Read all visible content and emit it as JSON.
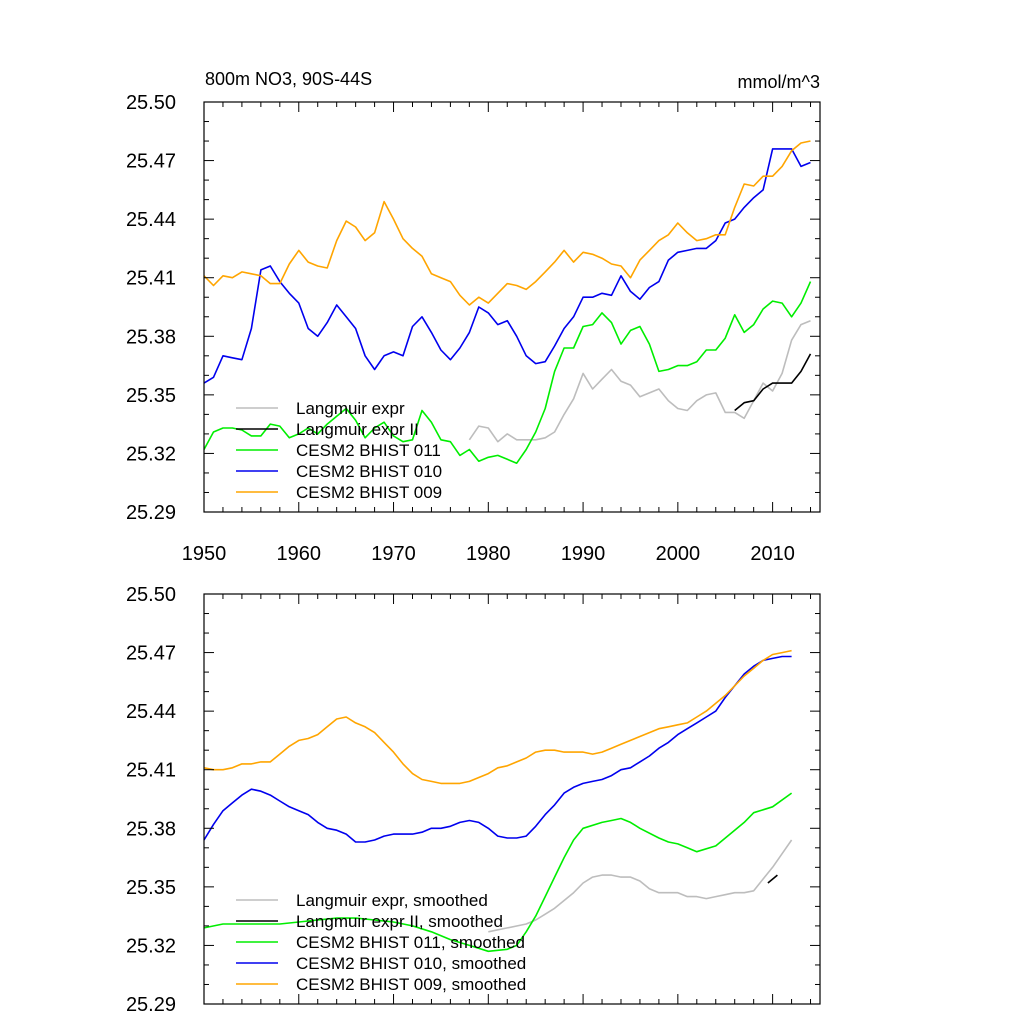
{
  "chart_data": [
    {
      "type": "line",
      "title": "800m NO3, 90S-44S",
      "subtitle_right": "mmol/m^3",
      "xlabel": "",
      "ylabel": "",
      "xlim": [
        1950,
        2015
      ],
      "ylim": [
        25.29,
        25.5
      ],
      "x_ticks": [
        1950,
        1960,
        1970,
        1980,
        1990,
        2000,
        2010
      ],
      "x_tick_labels": [
        "1950",
        "1960",
        "1970",
        "1980",
        "1990",
        "2000",
        "2010"
      ],
      "y_ticks": [
        25.29,
        25.32,
        25.35,
        25.38,
        25.41,
        25.44,
        25.47,
        25.5
      ],
      "y_tick_labels": [
        "25.29",
        "25.32",
        "25.35",
        "25.38",
        "25.41",
        "25.44",
        "25.47",
        "25.50"
      ],
      "legend_position": "bottom-left",
      "series": [
        {
          "name": "Langmuir expr",
          "color": "#bdbdbd",
          "x": [
            1978,
            1979,
            1980,
            1981,
            1982,
            1983,
            1984,
            1985,
            1986,
            1987,
            1988,
            1989,
            1990,
            1991,
            1992,
            1993,
            1994,
            1995,
            1996,
            1997,
            1998,
            1999,
            2000,
            2001,
            2002,
            2003,
            2004,
            2005,
            2006,
            2007,
            2008,
            2009,
            2010,
            2011,
            2012,
            2013,
            2014
          ],
          "y": [
            25.327,
            25.334,
            25.333,
            25.326,
            25.33,
            25.327,
            25.327,
            25.327,
            25.328,
            25.331,
            25.34,
            25.348,
            25.361,
            25.353,
            25.358,
            25.363,
            25.357,
            25.355,
            25.349,
            25.351,
            25.353,
            25.347,
            25.343,
            25.342,
            25.347,
            25.35,
            25.351,
            25.341,
            25.341,
            25.338,
            25.347,
            25.356,
            25.352,
            25.361,
            25.378,
            25.386,
            25.388
          ]
        },
        {
          "name": "Langmuir expr II",
          "color": "#000000",
          "x": [
            2006,
            2007,
            2008,
            2009,
            2010,
            2011,
            2012,
            2013,
            2014
          ],
          "y": [
            25.342,
            25.346,
            25.347,
            25.353,
            25.356,
            25.356,
            25.356,
            25.362,
            25.371
          ]
        },
        {
          "name": "CESM2 BHIST 011",
          "color": "#00ee00",
          "x": [
            1950,
            1951,
            1952,
            1953,
            1954,
            1955,
            1956,
            1957,
            1958,
            1959,
            1960,
            1961,
            1962,
            1963,
            1964,
            1965,
            1966,
            1967,
            1968,
            1969,
            1970,
            1971,
            1972,
            1973,
            1974,
            1975,
            1976,
            1977,
            1978,
            1979,
            1980,
            1981,
            1982,
            1983,
            1984,
            1985,
            1986,
            1987,
            1988,
            1989,
            1990,
            1991,
            1992,
            1993,
            1994,
            1995,
            1996,
            1997,
            1998,
            1999,
            2000,
            2001,
            2002,
            2003,
            2004,
            2005,
            2006,
            2007,
            2008,
            2009,
            2010,
            2011,
            2012,
            2013,
            2014
          ],
          "y": [
            25.322,
            25.331,
            25.333,
            25.333,
            25.332,
            25.329,
            25.329,
            25.335,
            25.334,
            25.328,
            25.33,
            25.333,
            25.33,
            25.335,
            25.339,
            25.343,
            25.337,
            25.328,
            25.333,
            25.336,
            25.329,
            25.326,
            25.327,
            25.342,
            25.336,
            25.327,
            25.326,
            25.319,
            25.322,
            25.316,
            25.318,
            25.319,
            25.317,
            25.315,
            25.322,
            25.331,
            25.343,
            25.362,
            25.374,
            25.374,
            25.385,
            25.386,
            25.392,
            25.387,
            25.376,
            25.383,
            25.385,
            25.376,
            25.362,
            25.363,
            25.365,
            25.365,
            25.367,
            25.373,
            25.373,
            25.379,
            25.391,
            25.382,
            25.386,
            25.394,
            25.398,
            25.397,
            25.39,
            25.397,
            25.408
          ]
        },
        {
          "name": "CESM2 BHIST 010",
          "color": "#0000ee",
          "x": [
            1950,
            1951,
            1952,
            1953,
            1954,
            1955,
            1956,
            1957,
            1958,
            1959,
            1960,
            1961,
            1962,
            1963,
            1964,
            1965,
            1966,
            1967,
            1968,
            1969,
            1970,
            1971,
            1972,
            1973,
            1974,
            1975,
            1976,
            1977,
            1978,
            1979,
            1980,
            1981,
            1982,
            1983,
            1984,
            1985,
            1986,
            1987,
            1988,
            1989,
            1990,
            1991,
            1992,
            1993,
            1994,
            1995,
            1996,
            1997,
            1998,
            1999,
            2000,
            2001,
            2002,
            2003,
            2004,
            2005,
            2006,
            2007,
            2008,
            2009,
            2010,
            2011,
            2012,
            2013,
            2014
          ],
          "y": [
            25.356,
            25.359,
            25.37,
            25.369,
            25.368,
            25.384,
            25.414,
            25.416,
            25.408,
            25.402,
            25.397,
            25.384,
            25.38,
            25.387,
            25.396,
            25.39,
            25.384,
            25.37,
            25.363,
            25.37,
            25.372,
            25.37,
            25.385,
            25.39,
            25.382,
            25.373,
            25.368,
            25.374,
            25.382,
            25.395,
            25.392,
            25.386,
            25.388,
            25.38,
            25.37,
            25.366,
            25.367,
            25.375,
            25.384,
            25.39,
            25.4,
            25.4,
            25.402,
            25.401,
            25.411,
            25.403,
            25.399,
            25.405,
            25.408,
            25.419,
            25.423,
            25.424,
            25.425,
            25.425,
            25.429,
            25.438,
            25.44,
            25.446,
            25.451,
            25.455,
            25.476,
            25.476,
            25.476,
            25.467,
            25.469
          ]
        },
        {
          "name": "CESM2 BHIST 009",
          "color": "#ffa500",
          "x": [
            1950,
            1951,
            1952,
            1953,
            1954,
            1955,
            1956,
            1957,
            1958,
            1959,
            1960,
            1961,
            1962,
            1963,
            1964,
            1965,
            1966,
            1967,
            1968,
            1969,
            1970,
            1971,
            1972,
            1973,
            1974,
            1975,
            1976,
            1977,
            1978,
            1979,
            1980,
            1981,
            1982,
            1983,
            1984,
            1985,
            1986,
            1987,
            1988,
            1989,
            1990,
            1991,
            1992,
            1993,
            1994,
            1995,
            1996,
            1997,
            1998,
            1999,
            2000,
            2001,
            2002,
            2003,
            2004,
            2005,
            2006,
            2007,
            2008,
            2009,
            2010,
            2011,
            2012,
            2013,
            2014
          ],
          "y": [
            25.411,
            25.406,
            25.411,
            25.41,
            25.413,
            25.412,
            25.411,
            25.407,
            25.407,
            25.417,
            25.424,
            25.418,
            25.416,
            25.415,
            25.429,
            25.439,
            25.436,
            25.429,
            25.433,
            25.449,
            25.44,
            25.43,
            25.425,
            25.421,
            25.412,
            25.41,
            25.408,
            25.401,
            25.396,
            25.4,
            25.397,
            25.402,
            25.407,
            25.406,
            25.404,
            25.408,
            25.413,
            25.418,
            25.424,
            25.418,
            25.423,
            25.422,
            25.42,
            25.417,
            25.416,
            25.41,
            25.419,
            25.424,
            25.429,
            25.432,
            25.438,
            25.433,
            25.429,
            25.43,
            25.432,
            25.432,
            25.446,
            25.458,
            25.457,
            25.462,
            25.462,
            25.467,
            25.475,
            25.479,
            25.48
          ]
        }
      ]
    },
    {
      "type": "line",
      "title": "",
      "xlabel": "",
      "ylabel": "",
      "xlim": [
        1950,
        2015
      ],
      "ylim": [
        25.29,
        25.5
      ],
      "x_ticks": [
        1950,
        1960,
        1970,
        1980,
        1990,
        2000,
        2010
      ],
      "y_ticks": [
        25.29,
        25.32,
        25.35,
        25.38,
        25.41,
        25.44,
        25.47,
        25.5
      ],
      "y_tick_labels": [
        "25.29",
        "25.32",
        "25.35",
        "25.38",
        "25.41",
        "25.44",
        "25.47",
        "25.50"
      ],
      "legend_position": "bottom-left",
      "series": [
        {
          "name": "Langmuir expr, smoothed",
          "color": "#bdbdbd",
          "x": [
            1980,
            1982,
            1984,
            1985,
            1986,
            1987,
            1988,
            1989,
            1990,
            1991,
            1992,
            1993,
            1994,
            1995,
            1996,
            1997,
            1998,
            1999,
            2000,
            2001,
            2002,
            2003,
            2004,
            2005,
            2006,
            2007,
            2008,
            2009,
            2010,
            2011,
            2012
          ],
          "y": [
            25.327,
            25.329,
            25.331,
            25.333,
            25.336,
            25.339,
            25.343,
            25.347,
            25.352,
            25.355,
            25.356,
            25.356,
            25.355,
            25.355,
            25.353,
            25.349,
            25.347,
            25.347,
            25.347,
            25.345,
            25.345,
            25.344,
            25.345,
            25.346,
            25.347,
            25.347,
            25.348,
            25.354,
            25.36,
            25.367,
            25.374
          ]
        },
        {
          "name": "Langmuir expr II, smoothed",
          "color": "#000000",
          "x": [
            2009.5,
            2010.5
          ],
          "y": [
            25.352,
            25.356
          ]
        },
        {
          "name": "CESM2 BHIST 011, smoothed",
          "color": "#00ee00",
          "x": [
            1950,
            1952,
            1954,
            1956,
            1958,
            1960,
            1962,
            1964,
            1966,
            1968,
            1970,
            1972,
            1974,
            1976,
            1978,
            1980,
            1982,
            1983,
            1984,
            1985,
            1986,
            1987,
            1988,
            1989,
            1990,
            1992,
            1993,
            1994,
            1995,
            1996,
            1998,
            1999,
            2000,
            2001,
            2002,
            2004,
            2006,
            2007,
            2008,
            2010,
            2012
          ],
          "y": [
            25.329,
            25.331,
            25.331,
            25.331,
            25.331,
            25.332,
            25.333,
            25.334,
            25.334,
            25.333,
            25.332,
            25.33,
            25.327,
            25.323,
            25.32,
            25.317,
            25.318,
            25.32,
            25.327,
            25.335,
            25.345,
            25.355,
            25.365,
            25.374,
            25.38,
            25.383,
            25.384,
            25.385,
            25.383,
            25.38,
            25.375,
            25.373,
            25.372,
            25.37,
            25.368,
            25.371,
            25.379,
            25.383,
            25.388,
            25.391,
            25.398
          ]
        },
        {
          "name": "CESM2 BHIST 010, smoothed",
          "color": "#0000ee",
          "x": [
            1950,
            1951,
            1952,
            1953,
            1954,
            1955,
            1956,
            1957,
            1958,
            1959,
            1960,
            1961,
            1962,
            1963,
            1964,
            1965,
            1966,
            1967,
            1968,
            1969,
            1970,
            1971,
            1972,
            1973,
            1974,
            1975,
            1976,
            1977,
            1978,
            1979,
            1980,
            1981,
            1982,
            1983,
            1984,
            1985,
            1986,
            1987,
            1988,
            1989,
            1990,
            1991,
            1992,
            1993,
            1994,
            1995,
            1996,
            1997,
            1998,
            1999,
            2000,
            2001,
            2002,
            2003,
            2004,
            2005,
            2006,
            2007,
            2008,
            2009,
            2010,
            2011,
            2012
          ],
          "y": [
            25.374,
            25.382,
            25.389,
            25.393,
            25.397,
            25.4,
            25.399,
            25.397,
            25.394,
            25.391,
            25.389,
            25.387,
            25.383,
            25.38,
            25.379,
            25.377,
            25.373,
            25.373,
            25.374,
            25.376,
            25.377,
            25.377,
            25.377,
            25.378,
            25.38,
            25.38,
            25.381,
            25.383,
            25.384,
            25.383,
            25.38,
            25.376,
            25.375,
            25.375,
            25.376,
            25.381,
            25.387,
            25.392,
            25.398,
            25.401,
            25.403,
            25.404,
            25.405,
            25.407,
            25.41,
            25.411,
            25.414,
            25.417,
            25.421,
            25.424,
            25.428,
            25.431,
            25.434,
            25.437,
            25.44,
            25.447,
            25.453,
            25.459,
            25.463,
            25.466,
            25.467,
            25.468,
            25.468
          ]
        },
        {
          "name": "CESM2 BHIST 009, smoothed",
          "color": "#ffa500",
          "x": [
            1950,
            1951,
            1952,
            1953,
            1954,
            1955,
            1956,
            1957,
            1958,
            1959,
            1960,
            1961,
            1962,
            1963,
            1964,
            1965,
            1966,
            1967,
            1968,
            1969,
            1970,
            1971,
            1972,
            1973,
            1974,
            1975,
            1976,
            1977,
            1978,
            1979,
            1980,
            1981,
            1982,
            1983,
            1984,
            1985,
            1986,
            1987,
            1988,
            1989,
            1990,
            1991,
            1992,
            1993,
            1994,
            1995,
            1996,
            1997,
            1998,
            1999,
            2000,
            2001,
            2002,
            2003,
            2004,
            2005,
            2006,
            2007,
            2008,
            2009,
            2010,
            2011,
            2012
          ],
          "y": [
            25.411,
            25.41,
            25.41,
            25.411,
            25.413,
            25.413,
            25.414,
            25.414,
            25.418,
            25.422,
            25.425,
            25.426,
            25.428,
            25.432,
            25.436,
            25.437,
            25.434,
            25.432,
            25.429,
            25.424,
            25.419,
            25.413,
            25.408,
            25.405,
            25.404,
            25.403,
            25.403,
            25.403,
            25.404,
            25.406,
            25.408,
            25.411,
            25.412,
            25.414,
            25.416,
            25.419,
            25.42,
            25.42,
            25.419,
            25.419,
            25.419,
            25.418,
            25.419,
            25.421,
            25.423,
            25.425,
            25.427,
            25.429,
            25.431,
            25.432,
            25.433,
            25.434,
            25.437,
            25.44,
            25.444,
            25.448,
            25.453,
            25.458,
            25.462,
            25.466,
            25.469,
            25.47,
            25.471
          ]
        }
      ]
    }
  ]
}
